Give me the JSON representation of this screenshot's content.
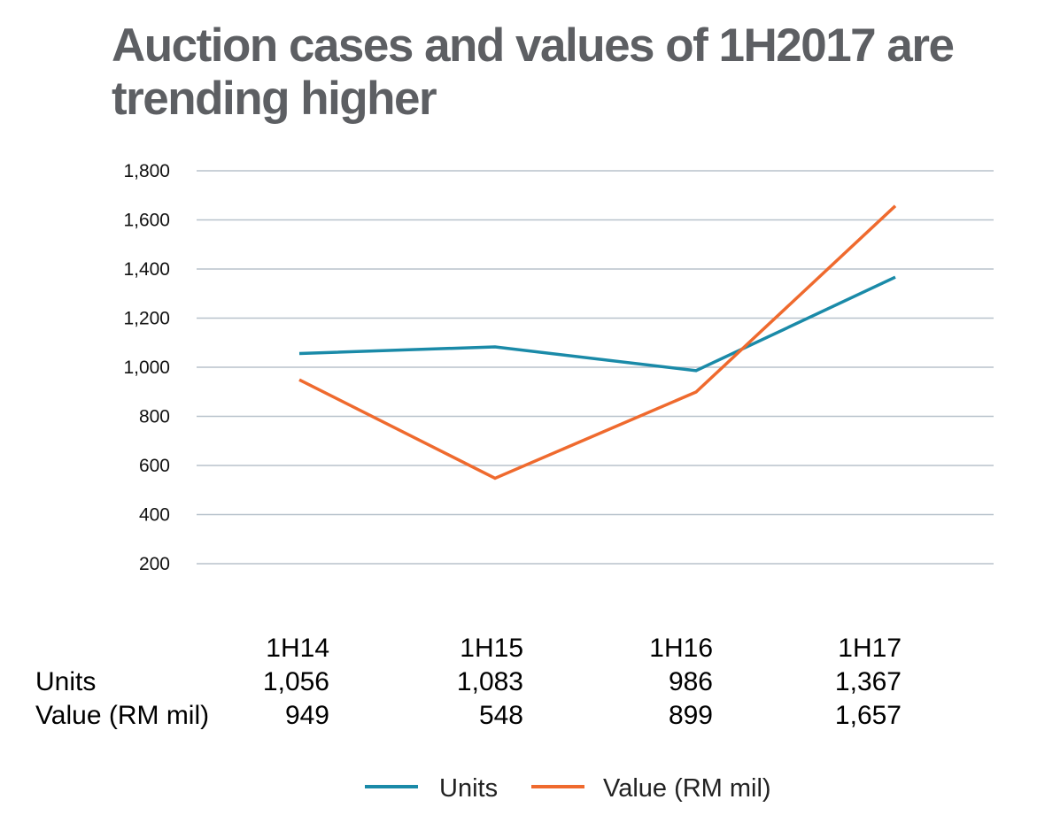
{
  "title": "Auction cases and values of 1H2017 are trending higher",
  "chart_data": {
    "type": "line",
    "title": "Auction cases and values of 1H2017 are trending higher",
    "categories": [
      "1H14",
      "1H15",
      "1H16",
      "1H17"
    ],
    "series": [
      {
        "name": "Units",
        "values": [
          1056,
          1083,
          986,
          1367
        ],
        "color": "#1a8aa8"
      },
      {
        "name": "Value (RM mil)",
        "values": [
          949,
          548,
          899,
          1657
        ],
        "color": "#ef6a2e"
      }
    ],
    "y_ticks": [
      200,
      400,
      600,
      800,
      1000,
      1200,
      1400,
      1600,
      1800
    ],
    "y_tick_labels": [
      "200",
      "400",
      "600",
      "800",
      "1,000",
      "1,200",
      "1,400",
      "1,600",
      "1,800"
    ],
    "ylim": [
      200,
      1800
    ],
    "grid": true,
    "gridline_color": "#b8c2cc",
    "legend_position": "bottom-center",
    "data_table": {
      "header": [
        "1H14",
        "1H15",
        "1H16",
        "1H17"
      ],
      "rows": [
        {
          "label": "Units",
          "values": [
            "1,056",
            "1,083",
            "986",
            "1,367"
          ]
        },
        {
          "label": "Value (RM mil)",
          "values": [
            "949",
            "548",
            "899",
            "1,657"
          ]
        }
      ]
    }
  }
}
